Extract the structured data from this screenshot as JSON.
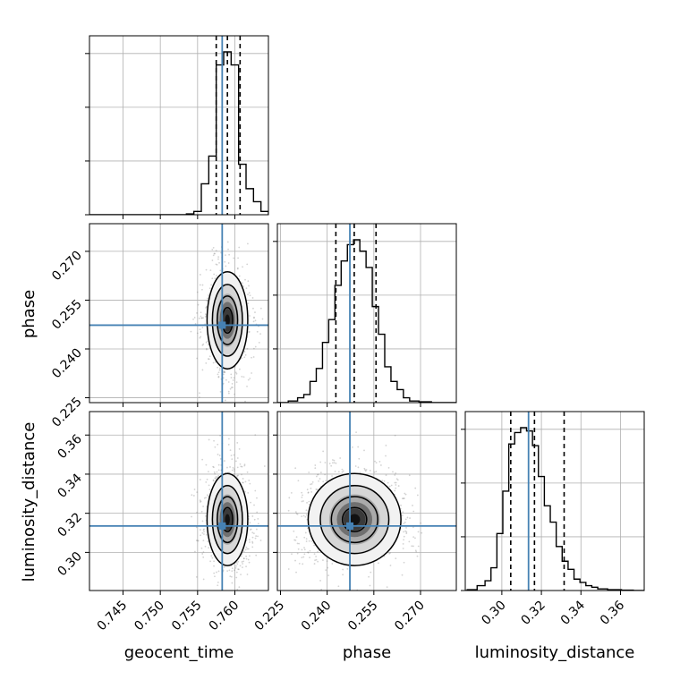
{
  "figure": {
    "type": "corner_plot",
    "parameters": [
      "geocent_time",
      "phase",
      "luminosity_distance"
    ]
  },
  "colors": {
    "truth": "#4682b4",
    "histogram": "#000000",
    "quantile": "#000000",
    "grid": "#b0b0b0",
    "points": "#808080",
    "density": [
      "#f2f2f2",
      "#d6d6d6",
      "#aaaaaa",
      "#707070",
      "#3a3a3a",
      "#111111"
    ]
  },
  "axis_labels": {
    "geocent_time": "geocent_time",
    "phase": "phase",
    "luminosity_distance": "luminosity_distance"
  },
  "chart_data": [
    {
      "type": "histogram",
      "panel": "geocent_time",
      "xlim": [
        0.7405,
        0.7645
      ],
      "x_ticks": [
        0.745,
        0.75,
        0.755,
        0.76
      ],
      "grid": true,
      "bins": [
        0.7535,
        0.7545,
        0.7555,
        0.7565,
        0.7575,
        0.7585,
        0.7595,
        0.7605,
        0.7615,
        0.7625,
        0.7635,
        0.7645
      ],
      "values": [
        0.005,
        0.02,
        0.19,
        0.36,
        0.92,
        1.0,
        0.92,
        0.31,
        0.16,
        0.08,
        0.02
      ],
      "truth": 0.7583,
      "quantiles": [
        0.7575,
        0.759,
        0.7607
      ]
    },
    {
      "type": "histogram",
      "panel": "phase",
      "xlim": [
        0.224,
        0.2815
      ],
      "x_ticks": [
        0.225,
        0.24,
        0.255,
        0.27
      ],
      "tick_labels": [
        "0.225",
        "0.240",
        "0.255",
        "0.270"
      ],
      "grid": true,
      "bins": [
        0.2275,
        0.2305,
        0.2325,
        0.2345,
        0.2365,
        0.2385,
        0.2405,
        0.2425,
        0.2445,
        0.2465,
        0.2485,
        0.2505,
        0.2525,
        0.2545,
        0.2565,
        0.2585,
        0.2605,
        0.2625,
        0.2645,
        0.2665,
        0.2695,
        0.2735
      ],
      "values": [
        0.01,
        0.03,
        0.05,
        0.13,
        0.21,
        0.37,
        0.51,
        0.72,
        0.87,
        0.97,
        1.0,
        0.93,
        0.83,
        0.59,
        0.42,
        0.22,
        0.13,
        0.08,
        0.03,
        0.01,
        0.005
      ],
      "truth": 0.2473,
      "quantiles": [
        0.2428,
        0.2487,
        0.2557
      ]
    },
    {
      "type": "histogram",
      "panel": "luminosity_distance",
      "xlim": [
        0.2815,
        0.372
      ],
      "x_ticks": [
        0.3,
        0.32,
        0.34,
        0.36
      ],
      "tick_labels": [
        "0.30",
        "0.32",
        "0.34",
        "0.36"
      ],
      "grid": true,
      "bins": [
        0.2825,
        0.2875,
        0.2915,
        0.2945,
        0.2975,
        0.3005,
        0.3035,
        0.3065,
        0.3095,
        0.3125,
        0.3155,
        0.3185,
        0.3215,
        0.3245,
        0.3275,
        0.3305,
        0.3335,
        0.3365,
        0.3395,
        0.3425,
        0.3455,
        0.3485,
        0.3535,
        0.3605,
        0.3665
      ],
      "values": [
        0.005,
        0.03,
        0.06,
        0.14,
        0.35,
        0.61,
        0.9,
        0.97,
        1.0,
        0.98,
        0.89,
        0.7,
        0.52,
        0.42,
        0.27,
        0.18,
        0.13,
        0.07,
        0.05,
        0.03,
        0.02,
        0.01,
        0.005,
        0.002
      ],
      "truth": 0.3135,
      "quantiles": [
        0.3045,
        0.3165,
        0.3315
      ]
    },
    {
      "type": "2d_density",
      "panel": "phase_vs_geocent_time",
      "x": "geocent_time",
      "y": "phase",
      "xlim": [
        0.7405,
        0.7645
      ],
      "ylim": [
        0.2235,
        0.2785
      ],
      "x_ticks": [
        0.745,
        0.75,
        0.755,
        0.76
      ],
      "y_ticks": [
        0.225,
        0.24,
        0.255,
        0.27
      ],
      "y_tick_labels": [
        "0.225",
        "0.240",
        "0.255",
        "0.270"
      ],
      "grid": true,
      "center": [
        0.759,
        0.2488
      ],
      "sigma": [
        0.0013,
        0.0071
      ],
      "truth": [
        0.7583,
        0.2473
      ]
    },
    {
      "type": "2d_density",
      "panel": "luminosity_distance_vs_geocent_time",
      "x": "geocent_time",
      "y": "luminosity_distance",
      "xlim": [
        0.7405,
        0.7645
      ],
      "ylim": [
        0.2805,
        0.372
      ],
      "x_ticks": [
        0.745,
        0.75,
        0.755,
        0.76
      ],
      "x_tick_labels": [
        "0.745",
        "0.750",
        "0.755",
        "0.760"
      ],
      "y_ticks": [
        0.3,
        0.32,
        0.34,
        0.36
      ],
      "y_tick_labels": [
        "0.30",
        "0.32",
        "0.34",
        "0.36"
      ],
      "grid": true,
      "center": [
        0.759,
        0.3168
      ],
      "sigma": [
        0.0013,
        0.0112
      ],
      "truth": [
        0.7583,
        0.3135
      ]
    },
    {
      "type": "2d_density",
      "panel": "luminosity_distance_vs_phase",
      "x": "phase",
      "y": "luminosity_distance",
      "xlim": [
        0.224,
        0.2815
      ],
      "ylim": [
        0.2805,
        0.372
      ],
      "x_ticks": [
        0.225,
        0.24,
        0.255,
        0.27
      ],
      "x_tick_labels": [
        "0.225",
        "0.240",
        "0.255",
        "0.270"
      ],
      "y_ticks": [
        0.3,
        0.32,
        0.34,
        0.36
      ],
      "grid": true,
      "center": [
        0.2488,
        0.3168
      ],
      "sigma": [
        0.0071,
        0.0112
      ],
      "truth": [
        0.2473,
        0.3135
      ]
    }
  ]
}
